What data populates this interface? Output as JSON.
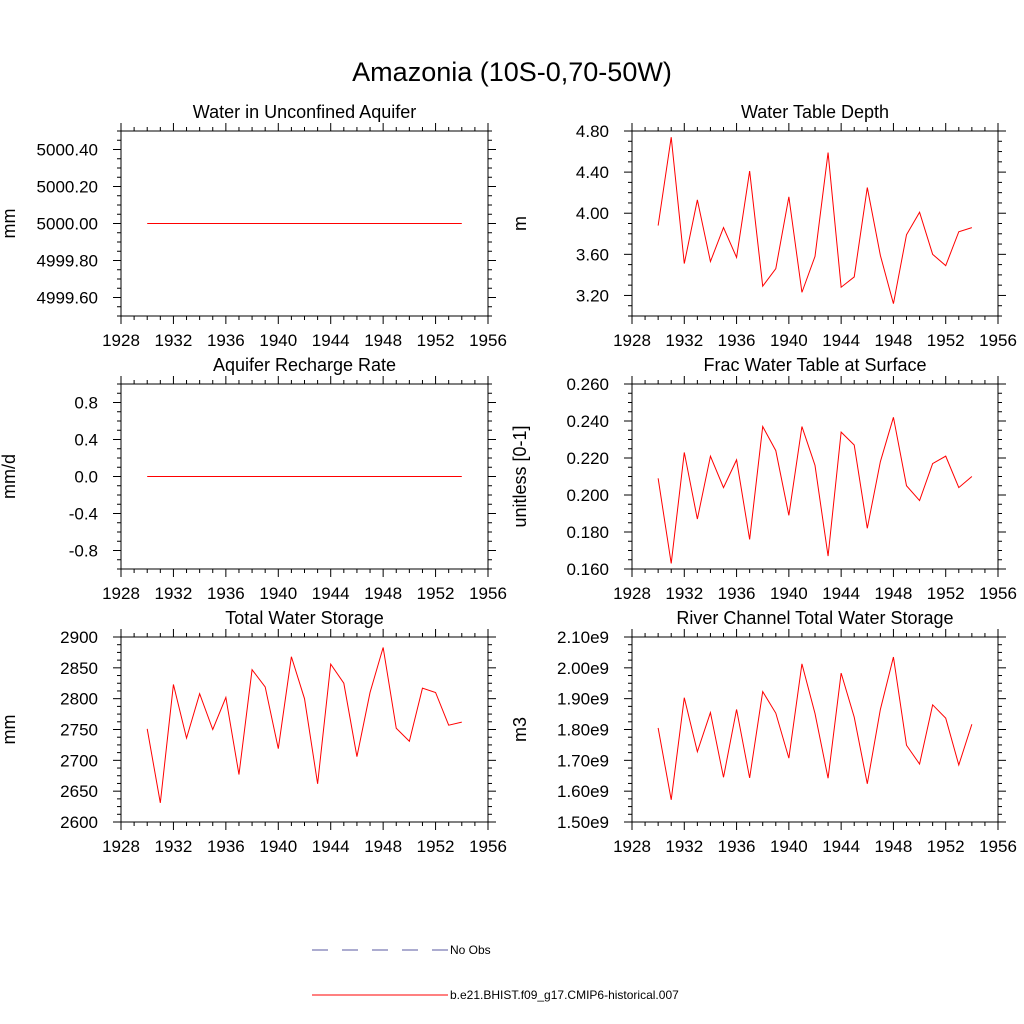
{
  "title": "Amazonia (10S-0,70-50W)",
  "legend": [
    {
      "label": "No Obs",
      "color": "#5a5aa0",
      "dash": true
    },
    {
      "label": "b.e21.BHIST.f09_g17.CMIP6-historical.007",
      "color": "#ff0000",
      "dash": false
    }
  ],
  "chart_data": [
    {
      "type": "line",
      "title": "Water in Unconfined Aquifer",
      "ylabel": "mm",
      "xlim": [
        1928,
        1956
      ],
      "ylim": [
        4999.5,
        5000.5
      ],
      "xticks": [
        "1928",
        "1932",
        "1936",
        "1940",
        "1944",
        "1948",
        "1952",
        "1956"
      ],
      "yticks": [
        "4999.60",
        "4999.80",
        "5000.00",
        "5000.20",
        "5000.40"
      ],
      "ytick_values": [
        4999.6,
        4999.8,
        5000.0,
        5000.2,
        5000.4
      ],
      "x": [
        1930,
        1931,
        1932,
        1933,
        1934,
        1935,
        1936,
        1937,
        1938,
        1939,
        1940,
        1941,
        1942,
        1943,
        1944,
        1945,
        1946,
        1947,
        1948,
        1949,
        1950,
        1951,
        1952,
        1953,
        1954
      ],
      "series": [
        {
          "values": [
            5000,
            5000,
            5000,
            5000,
            5000,
            5000,
            5000,
            5000,
            5000,
            5000,
            5000,
            5000,
            5000,
            5000,
            5000,
            5000,
            5000,
            5000,
            5000,
            5000,
            5000,
            5000,
            5000,
            5000,
            5000
          ]
        }
      ]
    },
    {
      "type": "line",
      "title": "Water Table Depth",
      "ylabel": "m",
      "xlim": [
        1928,
        1956
      ],
      "ylim": [
        3.0,
        4.8
      ],
      "xticks": [
        "1928",
        "1932",
        "1936",
        "1940",
        "1944",
        "1948",
        "1952",
        "1956"
      ],
      "yticks": [
        "3.20",
        "3.60",
        "4.00",
        "4.40",
        "4.80"
      ],
      "ytick_values": [
        3.2,
        3.6,
        4.0,
        4.4,
        4.8
      ],
      "x": [
        1930,
        1931,
        1932,
        1933,
        1934,
        1935,
        1936,
        1937,
        1938,
        1939,
        1940,
        1941,
        1942,
        1943,
        1944,
        1945,
        1946,
        1947,
        1948,
        1949,
        1950,
        1951,
        1952,
        1953,
        1954
      ],
      "series": [
        {
          "values": [
            3.88,
            4.74,
            3.51,
            4.13,
            3.53,
            3.86,
            3.57,
            4.41,
            3.29,
            3.46,
            4.16,
            3.23,
            3.58,
            4.59,
            3.28,
            3.38,
            4.25,
            3.59,
            3.12,
            3.79,
            4.01,
            3.6,
            3.49,
            3.82,
            3.86
          ]
        }
      ]
    },
    {
      "type": "line",
      "title": "Aquifer Recharge Rate",
      "ylabel": "mm/d",
      "xlim": [
        1928,
        1956
      ],
      "ylim": [
        -1.0,
        1.0
      ],
      "xticks": [
        "1928",
        "1932",
        "1936",
        "1940",
        "1944",
        "1948",
        "1952",
        "1956"
      ],
      "yticks": [
        "-0.8",
        "-0.4",
        "0.0",
        "0.4",
        "0.8"
      ],
      "ytick_values": [
        -0.8,
        -0.4,
        0.0,
        0.4,
        0.8
      ],
      "x": [
        1930,
        1931,
        1932,
        1933,
        1934,
        1935,
        1936,
        1937,
        1938,
        1939,
        1940,
        1941,
        1942,
        1943,
        1944,
        1945,
        1946,
        1947,
        1948,
        1949,
        1950,
        1951,
        1952,
        1953,
        1954
      ],
      "series": [
        {
          "values": [
            0,
            0,
            0,
            0,
            0,
            0,
            0,
            0,
            0,
            0,
            0,
            0,
            0,
            0,
            0,
            0,
            0,
            0,
            0,
            0,
            0,
            0,
            0,
            0,
            0
          ]
        }
      ]
    },
    {
      "type": "line",
      "title": "Frac Water Table at Surface",
      "ylabel": "unitless [0-1]",
      "xlim": [
        1928,
        1956
      ],
      "ylim": [
        0.16,
        0.26
      ],
      "xticks": [
        "1928",
        "1932",
        "1936",
        "1940",
        "1944",
        "1948",
        "1952",
        "1956"
      ],
      "yticks": [
        "0.160",
        "0.180",
        "0.200",
        "0.220",
        "0.240",
        "0.260"
      ],
      "ytick_values": [
        0.16,
        0.18,
        0.2,
        0.22,
        0.24,
        0.26
      ],
      "x": [
        1930,
        1931,
        1932,
        1933,
        1934,
        1935,
        1936,
        1937,
        1938,
        1939,
        1940,
        1941,
        1942,
        1943,
        1944,
        1945,
        1946,
        1947,
        1948,
        1949,
        1950,
        1951,
        1952,
        1953,
        1954
      ],
      "series": [
        {
          "values": [
            0.209,
            0.163,
            0.223,
            0.187,
            0.221,
            0.204,
            0.219,
            0.176,
            0.237,
            0.224,
            0.189,
            0.237,
            0.216,
            0.167,
            0.234,
            0.227,
            0.182,
            0.218,
            0.242,
            0.205,
            0.197,
            0.217,
            0.221,
            0.204,
            0.21
          ]
        }
      ]
    },
    {
      "type": "line",
      "title": "Total Water Storage",
      "ylabel": "mm",
      "xlim": [
        1928,
        1956
      ],
      "ylim": [
        2600,
        2900
      ],
      "xticks": [
        "1928",
        "1932",
        "1936",
        "1940",
        "1944",
        "1948",
        "1952",
        "1956"
      ],
      "yticks": [
        "2600",
        "2650",
        "2700",
        "2750",
        "2800",
        "2850",
        "2900"
      ],
      "ytick_values": [
        2600,
        2650,
        2700,
        2750,
        2800,
        2850,
        2900
      ],
      "x": [
        1930,
        1931,
        1932,
        1933,
        1934,
        1935,
        1936,
        1937,
        1938,
        1939,
        1940,
        1941,
        1942,
        1943,
        1944,
        1945,
        1946,
        1947,
        1948,
        1949,
        1950,
        1951,
        1952,
        1953,
        1954
      ],
      "series": [
        {
          "values": [
            2751,
            2631,
            2823,
            2736,
            2808,
            2750,
            2802,
            2677,
            2847,
            2819,
            2719,
            2868,
            2800,
            2662,
            2856,
            2825,
            2706,
            2810,
            2883,
            2752,
            2731,
            2817,
            2810,
            2757,
            2762
          ]
        }
      ]
    },
    {
      "type": "line",
      "title": "River Channel Total Water Storage",
      "ylabel": "m3",
      "xlim": [
        1928,
        1956
      ],
      "ylim": [
        1500000000.0,
        2100000000.0
      ],
      "xticks": [
        "1928",
        "1932",
        "1936",
        "1940",
        "1944",
        "1948",
        "1952",
        "1956"
      ],
      "yticks": [
        "1.50e9",
        "1.60e9",
        "1.70e9",
        "1.80e9",
        "1.90e9",
        "2.00e9",
        "2.10e9"
      ],
      "ytick_values": [
        1500000000.0,
        1600000000.0,
        1700000000.0,
        1800000000.0,
        1900000000.0,
        2000000000.0,
        2100000000.0
      ],
      "x": [
        1930,
        1931,
        1932,
        1933,
        1934,
        1935,
        1936,
        1937,
        1938,
        1939,
        1940,
        1941,
        1942,
        1943,
        1944,
        1945,
        1946,
        1947,
        1948,
        1949,
        1950,
        1951,
        1952,
        1953,
        1954
      ],
      "series": [
        {
          "values": [
            1805000000.0,
            1572000000.0,
            1903000000.0,
            1728000000.0,
            1855000000.0,
            1645000000.0,
            1865000000.0,
            1643000000.0,
            1923000000.0,
            1853000000.0,
            1707000000.0,
            2013000000.0,
            1852000000.0,
            1642000000.0,
            1983000000.0,
            1840000000.0,
            1624000000.0,
            1865000000.0,
            2035000000.0,
            1749000000.0,
            1688000000.0,
            1880000000.0,
            1837000000.0,
            1685000000.0,
            1817000000.0
          ]
        }
      ]
    }
  ]
}
